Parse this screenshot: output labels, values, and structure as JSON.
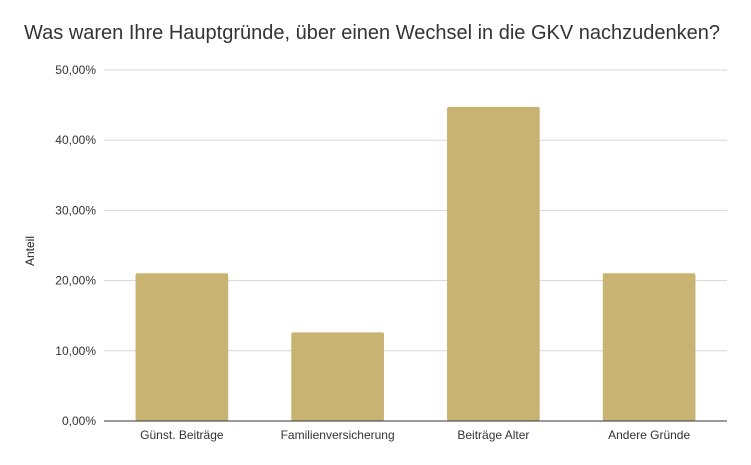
{
  "chart_data": {
    "type": "bar",
    "title": "Was waren Ihre Hauptgründe, über einen Wechsel in die GKV nachzudenken?",
    "xlabel": "",
    "ylabel": "Anteil",
    "categories": [
      "Günst. Beiträge",
      "Familienversicherung",
      "Beiträge Alter",
      "Andere Gründe"
    ],
    "values": [
      0.2105,
      0.1263,
      0.4474,
      0.2105
    ],
    "ylim": [
      0,
      0.5
    ],
    "yticks": [
      0,
      0.1,
      0.2,
      0.3,
      0.4,
      0.5
    ],
    "ytick_labels": [
      "0,00%",
      "10,00%",
      "20,00%",
      "30,00%",
      "40,00%",
      "50,00%"
    ],
    "bar_color": "#c9b373",
    "grid": true,
    "legend": "none"
  }
}
